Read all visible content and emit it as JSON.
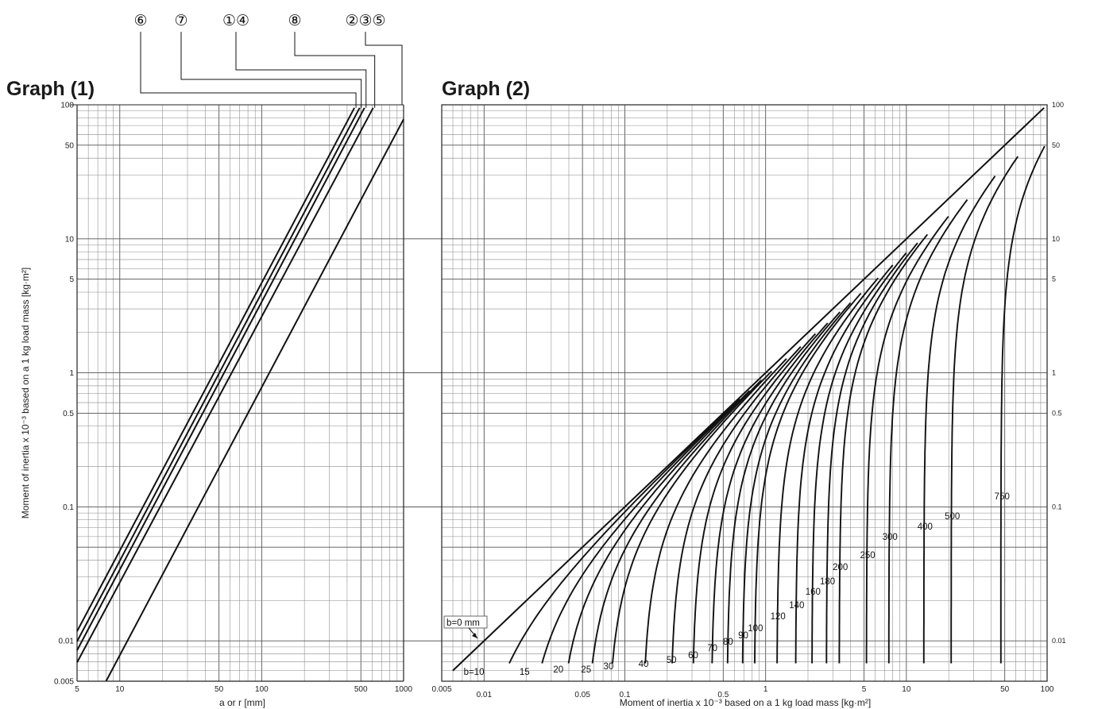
{
  "chart_data": [
    {
      "type": "line",
      "title": "Graph (1)",
      "xlabel": "a or r [mm]",
      "ylabel": "Moment of inertia x 10⁻³ based on a 1 kg load mass [kg·m²]",
      "xscale": "log",
      "yscale": "log",
      "xlim": [
        5,
        1000
      ],
      "ylim": [
        0.005,
        100
      ],
      "grid": true,
      "x_ticks": [
        "5",
        "10",
        "50",
        "100",
        "500",
        "1000"
      ],
      "y_ticks": [
        "0.005",
        "0.01",
        "0.1",
        "0.5",
        "1",
        "5",
        "10",
        "50",
        "100"
      ],
      "series": [
        {
          "name": "⑥",
          "x": [
            5,
            450
          ],
          "y": [
            0.0118,
            95
          ]
        },
        {
          "name": "⑦",
          "x": [
            5,
            490
          ],
          "y": [
            0.0099,
            95
          ]
        },
        {
          "name": "①④",
          "x": [
            5,
            530
          ],
          "y": [
            0.0085,
            95
          ]
        },
        {
          "name": "⑧",
          "x": [
            5,
            610
          ],
          "y": [
            0.0069,
            95
          ]
        },
        {
          "name": "②③⑤",
          "x": [
            8,
            1000
          ],
          "y": [
            0.005,
            78
          ]
        }
      ]
    },
    {
      "type": "line",
      "title": "Graph (2)",
      "xlabel": "Moment of inertia x 10⁻³ based on a 1 kg load mass [kg·m²]",
      "xscale": "log",
      "yscale": "log",
      "xlim": [
        0.005,
        100
      ],
      "ylim": [
        0.005,
        100
      ],
      "grid": true,
      "x_ticks": [
        "0.005",
        "0.01",
        "0.05",
        "0.1",
        "0.5",
        "1",
        "5",
        "10",
        "50",
        "100"
      ],
      "y_ticks": [
        "0.01",
        "0.1",
        "0.5",
        "1",
        "5",
        "10",
        "50",
        "100"
      ],
      "annotations": [
        {
          "text": "b=0 mm"
        }
      ],
      "series": [
        {
          "name": "b=10",
          "start_x": 0.0083,
          "end_x": 0.55
        },
        {
          "name": "15",
          "start_x": 0.019,
          "end_x": 0.65
        },
        {
          "name": "20",
          "start_x": 0.033,
          "end_x": 0.75
        },
        {
          "name": "25",
          "start_x": 0.052,
          "end_x": 0.9
        },
        {
          "name": "30",
          "start_x": 0.075,
          "end_x": 1.05
        },
        {
          "name": "40",
          "start_x": 0.133,
          "end_x": 1.3
        },
        {
          "name": "50",
          "start_x": 0.21,
          "end_x": 1.6
        },
        {
          "name": "60",
          "start_x": 0.3,
          "end_x": 2.0
        },
        {
          "name": "70",
          "start_x": 0.41,
          "end_x": 2.4
        },
        {
          "name": "80",
          "start_x": 0.53,
          "end_x": 2.9
        },
        {
          "name": "90",
          "start_x": 0.68,
          "end_x": 3.4
        },
        {
          "name": "100",
          "start_x": 0.83,
          "end_x": 4.0
        },
        {
          "name": "120",
          "start_x": 1.2,
          "end_x": 5.2
        },
        {
          "name": "140",
          "start_x": 1.63,
          "end_x": 6.5
        },
        {
          "name": "160",
          "start_x": 2.13,
          "end_x": 8.0
        },
        {
          "name": "180",
          "start_x": 2.7,
          "end_x": 9.5
        },
        {
          "name": "200",
          "start_x": 3.33,
          "end_x": 11
        },
        {
          "name": "250",
          "start_x": 5.2,
          "end_x": 15
        },
        {
          "name": "300",
          "start_x": 7.5,
          "end_x": 20
        },
        {
          "name": "400",
          "start_x": 13.3,
          "end_x": 30
        },
        {
          "name": "500",
          "start_x": 20.8,
          "end_x": 42
        },
        {
          "name": "750",
          "start_x": 46.9,
          "end_x": 80
        }
      ]
    }
  ]
}
